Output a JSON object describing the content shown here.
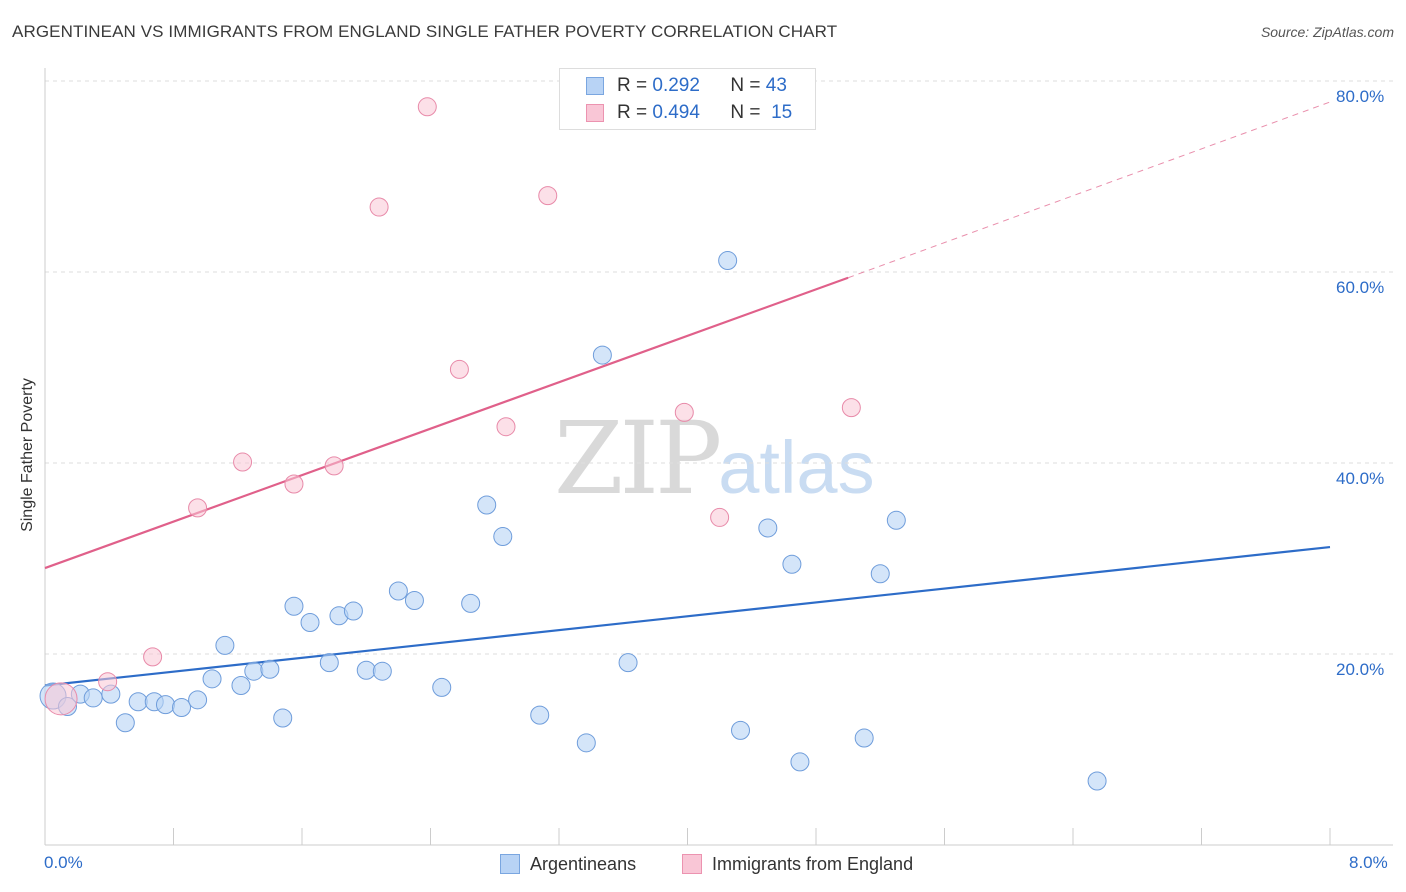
{
  "title": "ARGENTINEAN VS IMMIGRANTS FROM ENGLAND SINGLE FATHER POVERTY CORRELATION CHART",
  "source": "Source: ZipAtlas.com",
  "watermark": {
    "zip": "ZIP",
    "atlas": "atlas"
  },
  "legend_top": {
    "rows": [
      {
        "r_label": "R =",
        "r_value": "0.292",
        "n_label": "N =",
        "n_value": "43"
      },
      {
        "r_label": "R =",
        "r_value": "0.494",
        "n_label": "N =",
        "n_value": "15"
      }
    ]
  },
  "colors": {
    "blue": "#2d6cc8",
    "pink": "#e0608a",
    "blue_fill": "#b8d3f5",
    "pink_fill": "#f9c6d6"
  },
  "chart_data": {
    "type": "scatter",
    "title": "ARGENTINEAN VS IMMIGRANTS FROM ENGLAND SINGLE FATHER POVERTY CORRELATION CHART",
    "xlabel": "",
    "ylabel": "Single Father Poverty",
    "xlim": [
      0,
      8
    ],
    "ylim": [
      0,
      82
    ],
    "x_tick_labels": [
      "0.0%",
      "8.0%"
    ],
    "y_ticks": [
      20,
      40,
      60,
      80
    ],
    "y_tick_labels": [
      "20.0%",
      "40.0%",
      "60.0%",
      "80.0%"
    ],
    "grid": true,
    "legend_position": "bottom",
    "series": [
      {
        "name": "Argentineans",
        "color": "#2d6cc8",
        "r": "0.292",
        "n": "43",
        "trend": {
          "x": [
            0,
            8
          ],
          "y": [
            16.7,
            31.2
          ]
        },
        "points": [
          [
            0.05,
            15.6
          ],
          [
            0.14,
            14.5
          ],
          [
            0.22,
            15.8
          ],
          [
            0.3,
            15.4
          ],
          [
            0.41,
            15.8
          ],
          [
            0.5,
            12.8
          ],
          [
            0.58,
            15.0
          ],
          [
            0.68,
            15.0
          ],
          [
            0.75,
            14.7
          ],
          [
            0.85,
            14.4
          ],
          [
            0.95,
            15.2
          ],
          [
            1.04,
            17.4
          ],
          [
            1.12,
            20.9
          ],
          [
            1.22,
            16.7
          ],
          [
            1.3,
            18.2
          ],
          [
            1.4,
            18.4
          ],
          [
            1.48,
            13.3
          ],
          [
            1.55,
            25.0
          ],
          [
            1.65,
            23.3
          ],
          [
            1.77,
            19.1
          ],
          [
            1.83,
            24.0
          ],
          [
            1.92,
            24.5
          ],
          [
            2.0,
            18.3
          ],
          [
            2.2,
            26.6
          ],
          [
            2.1,
            18.2
          ],
          [
            2.3,
            25.6
          ],
          [
            2.47,
            16.5
          ],
          [
            2.65,
            25.3
          ],
          [
            2.75,
            35.6
          ],
          [
            2.85,
            32.3
          ],
          [
            3.08,
            13.6
          ],
          [
            3.37,
            10.7
          ],
          [
            3.47,
            51.3
          ],
          [
            3.63,
            19.1
          ],
          [
            4.25,
            61.2
          ],
          [
            4.33,
            12.0
          ],
          [
            4.5,
            33.2
          ],
          [
            4.65,
            29.4
          ],
          [
            4.7,
            8.7
          ],
          [
            5.1,
            11.2
          ],
          [
            5.2,
            28.4
          ],
          [
            5.3,
            34.0
          ],
          [
            6.55,
            6.7
          ]
        ]
      },
      {
        "name": "Immigrants from England",
        "color": "#e0608a",
        "r": "0.494",
        "n": "15",
        "trend": {
          "x": [
            0,
            5.0
          ],
          "y": [
            29.0,
            59.4
          ],
          "dashed_to": {
            "x": 8.0,
            "y": 77.8
          }
        },
        "points": [
          [
            0.1,
            15.3
          ],
          [
            0.39,
            17.1
          ],
          [
            0.67,
            19.7
          ],
          [
            0.95,
            35.3
          ],
          [
            1.23,
            40.1
          ],
          [
            1.55,
            37.8
          ],
          [
            1.8,
            39.7
          ],
          [
            2.08,
            66.8
          ],
          [
            2.38,
            77.3
          ],
          [
            2.58,
            49.8
          ],
          [
            2.87,
            43.8
          ],
          [
            3.13,
            68.0
          ],
          [
            3.98,
            45.3
          ],
          [
            4.2,
            34.3
          ],
          [
            5.02,
            45.8
          ]
        ]
      }
    ]
  }
}
